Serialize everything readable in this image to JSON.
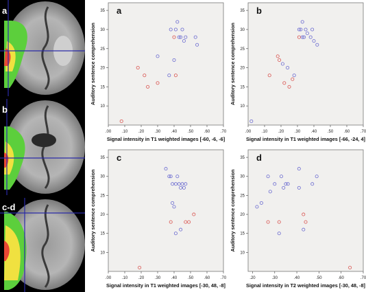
{
  "brain_panel_labels": [
    "a",
    "b",
    "c-d"
  ],
  "colors": {
    "red_marker": "#d9534f",
    "blue_marker": "#6a6ad0",
    "panel_bg": "#f1f0ee",
    "grid_line": "#2a2aa8"
  },
  "chart_data": [
    {
      "type": "scatter",
      "panel": "a",
      "xlabel": "Signal intensity in T1 weighted images [-60, -6, -6]",
      "ylabel": "Auditory sentence comprehension",
      "xlim": [
        0,
        0.7
      ],
      "ylim": [
        5,
        37
      ],
      "xticks": [
        ".00",
        ".10",
        ".20",
        ".30",
        ".40",
        ".50",
        ".60",
        ".70"
      ],
      "yticks": [
        "10",
        "15",
        "20",
        "25",
        "30",
        "35"
      ],
      "grid": false,
      "series": [
        {
          "color": "red",
          "points": [
            [
              0.08,
              6
            ],
            [
              0.18,
              20
            ],
            [
              0.22,
              18
            ],
            [
              0.24,
              15
            ],
            [
              0.3,
              16
            ],
            [
              0.4,
              28
            ],
            [
              0.41,
              18
            ]
          ]
        },
        {
          "color": "blue",
          "points": [
            [
              0.38,
              30
            ],
            [
              0.4,
              22
            ],
            [
              0.41,
              30
            ],
            [
              0.42,
              32
            ],
            [
              0.43,
              28
            ],
            [
              0.44,
              28
            ],
            [
              0.45,
              30
            ],
            [
              0.46,
              27
            ],
            [
              0.37,
              18
            ],
            [
              0.3,
              23
            ],
            [
              0.53,
              28
            ],
            [
              0.54,
              26
            ],
            [
              0.47,
              28
            ]
          ]
        }
      ]
    },
    {
      "type": "scatter",
      "panel": "b",
      "xlabel": "Signal intensity in T1 weighted images [-66, -24, 4]",
      "ylabel": "Auditory sentence comprehension",
      "xlim": [
        0,
        0.7
      ],
      "ylim": [
        5,
        37
      ],
      "xticks": [
        ".00",
        ".10",
        ".20",
        ".30",
        ".40",
        ".50",
        ".60",
        ".70"
      ],
      "yticks": [
        "10",
        "15",
        "20",
        "25",
        "30",
        "35"
      ],
      "grid": false,
      "series": [
        {
          "color": "red",
          "points": [
            [
              0.13,
              18
            ],
            [
              0.18,
              23
            ],
            [
              0.19,
              22
            ],
            [
              0.22,
              16
            ],
            [
              0.25,
              15
            ],
            [
              0.27,
              17
            ],
            [
              0.31,
              28
            ]
          ]
        },
        {
          "color": "blue",
          "points": [
            [
              0.02,
              6
            ],
            [
              0.21,
              21
            ],
            [
              0.24,
              20
            ],
            [
              0.28,
              18
            ],
            [
              0.31,
              30
            ],
            [
              0.32,
              30
            ],
            [
              0.33,
              32
            ],
            [
              0.33,
              28
            ],
            [
              0.34,
              28
            ],
            [
              0.35,
              30
            ],
            [
              0.36,
              29
            ],
            [
              0.38,
              28
            ],
            [
              0.4,
              27
            ],
            [
              0.42,
              26
            ],
            [
              0.39,
              30
            ]
          ]
        }
      ]
    },
    {
      "type": "scatter",
      "panel": "c",
      "xlabel": "Signal intensity in T1 weighted images [-30, 48, -8]",
      "ylabel": "Auditory sentence comprehension",
      "xlim": [
        0,
        0.7
      ],
      "ylim": [
        5,
        37
      ],
      "xticks": [
        ".00",
        ".10",
        ".20",
        ".30",
        ".40",
        ".50",
        ".60",
        ".70"
      ],
      "yticks": [
        "10",
        "15",
        "20",
        "25",
        "30",
        "35"
      ],
      "grid": false,
      "series": [
        {
          "color": "red",
          "points": [
            [
              0.19,
              6
            ],
            [
              0.38,
              18
            ],
            [
              0.47,
              18
            ],
            [
              0.49,
              18
            ],
            [
              0.52,
              20
            ]
          ]
        },
        {
          "color": "blue",
          "points": [
            [
              0.35,
              32
            ],
            [
              0.37,
              30
            ],
            [
              0.38,
              30
            ],
            [
              0.39,
              28
            ],
            [
              0.39,
              23
            ],
            [
              0.4,
              22
            ],
            [
              0.41,
              28
            ],
            [
              0.42,
              30
            ],
            [
              0.43,
              28
            ],
            [
              0.44,
              27
            ],
            [
              0.45,
              28
            ],
            [
              0.46,
              27
            ],
            [
              0.47,
              28
            ],
            [
              0.41,
              15
            ],
            [
              0.44,
              16
            ]
          ]
        }
      ]
    },
    {
      "type": "scatter",
      "panel": "d",
      "xlabel": "Signal intensity in T2 weighted images [-30, 48, -8]",
      "ylabel": "Auditory sentence comprehension",
      "xlim": [
        0.18,
        0.7
      ],
      "ylim": [
        5,
        37
      ],
      "xticks": [
        ".20",
        ".30",
        ".40",
        ".50",
        ".60",
        ".70"
      ],
      "yticks": [
        "10",
        "15",
        "20",
        "25",
        "30",
        "35"
      ],
      "grid": false,
      "series": [
        {
          "color": "red",
          "points": [
            [
              0.27,
              18
            ],
            [
              0.32,
              18
            ],
            [
              0.43,
              20
            ],
            [
              0.44,
              18
            ],
            [
              0.64,
              6
            ]
          ]
        },
        {
          "color": "blue",
          "points": [
            [
              0.22,
              22
            ],
            [
              0.24,
              23
            ],
            [
              0.27,
              30
            ],
            [
              0.28,
              26
            ],
            [
              0.3,
              28
            ],
            [
              0.32,
              15
            ],
            [
              0.33,
              30
            ],
            [
              0.34,
              27
            ],
            [
              0.35,
              28
            ],
            [
              0.36,
              28
            ],
            [
              0.41,
              32
            ],
            [
              0.41,
              27
            ],
            [
              0.43,
              16
            ],
            [
              0.47,
              28
            ],
            [
              0.49,
              30
            ]
          ]
        }
      ]
    }
  ]
}
